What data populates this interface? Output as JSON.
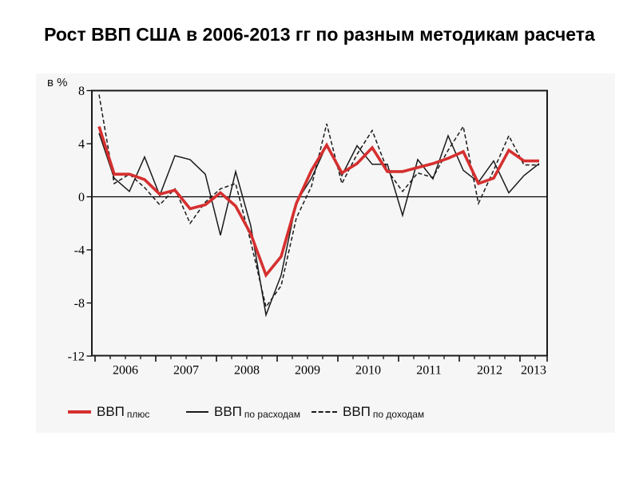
{
  "page": {
    "title": "Рост ВВП США в 2006-2013 гг по разным методикам расчета"
  },
  "chart_data": {
    "type": "line",
    "title": "Рост ВВП США в 2006-2013 гг по разным методикам расчета",
    "y_unit_label": "в %",
    "ylabel": "в %",
    "xlabel": "",
    "ylim": [
      -12,
      8
    ],
    "yticks": [
      8,
      4,
      0,
      -4,
      -8,
      -12
    ],
    "x_year_labels": [
      "2006",
      "2007",
      "2008",
      "2009",
      "2010",
      "2011",
      "2012",
      "2013"
    ],
    "x_frequency": "quarterly",
    "x_range": "2006Q1-2013Q2",
    "grid": false,
    "legend_position": "bottom",
    "zero_line": true,
    "series": [
      {
        "name": "ВВП плюс",
        "color": "#d62f2f",
        "style": "solid-thick",
        "values": [
          5.3,
          1.7,
          1.7,
          1.3,
          0.2,
          0.5,
          -0.9,
          -0.6,
          0.3,
          -0.7,
          -2.8,
          -5.9,
          -4.5,
          -0.5,
          2.0,
          3.9,
          1.8,
          2.5,
          3.7,
          1.9,
          1.9,
          2.2,
          2.5,
          2.9,
          3.4,
          1.0,
          1.4,
          3.5,
          2.7,
          2.7
        ]
      },
      {
        "name": "ВВП по расходам",
        "color": "#1a1a1a",
        "style": "solid",
        "values": [
          4.8,
          1.4,
          0.4,
          3.0,
          0.1,
          3.1,
          2.8,
          1.7,
          -2.9,
          1.9,
          -2.2,
          -8.9,
          -5.9,
          -0.4,
          1.4,
          3.9,
          1.6,
          3.85,
          2.45,
          2.45,
          -1.4,
          2.8,
          1.35,
          4.6,
          2.0,
          1.1,
          2.7,
          0.3,
          1.6,
          2.5
        ]
      },
      {
        "name": "ВВП по доходам",
        "color": "#1a1a1a",
        "style": "dashed",
        "values": [
          7.7,
          1.0,
          1.7,
          0.7,
          -0.6,
          0.6,
          -2.0,
          -0.4,
          0.6,
          1.0,
          -3.4,
          -8.3,
          -6.7,
          -1.6,
          0.8,
          5.5,
          1.0,
          3.2,
          5.0,
          2.0,
          0.4,
          1.8,
          1.45,
          3.5,
          5.3,
          -0.5,
          2.0,
          4.6,
          2.4,
          2.4
        ]
      }
    ],
    "legend": [
      {
        "main": "ВВП",
        "sub": "плюс"
      },
      {
        "main": "ВВП",
        "sub": "по расходам"
      },
      {
        "main": "ВВП",
        "sub": "по доходам"
      }
    ]
  }
}
